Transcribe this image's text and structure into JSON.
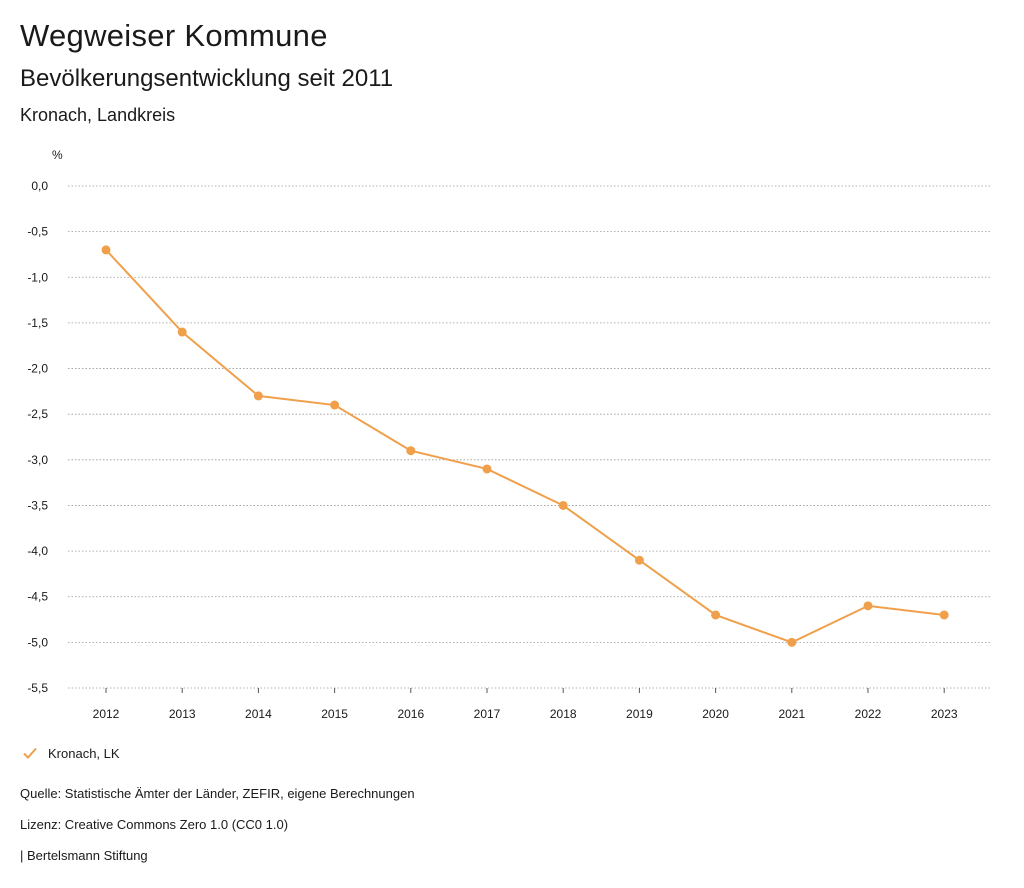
{
  "header": {
    "title": "Wegweiser Kommune",
    "subtitle": "Bevölkerungsentwicklung seit 2011",
    "region": "Kronach, Landkreis"
  },
  "chart_data": {
    "type": "line",
    "unit_label": "%",
    "x": [
      "2012",
      "2013",
      "2014",
      "2015",
      "2016",
      "2017",
      "2018",
      "2019",
      "2020",
      "2021",
      "2022",
      "2023"
    ],
    "series": [
      {
        "name": "Kronach, LK",
        "color": "#f0a04b",
        "values": [
          -0.7,
          -1.6,
          -2.3,
          -2.4,
          -2.9,
          -3.1,
          -3.5,
          -4.1,
          -4.7,
          -5.0,
          -4.6,
          -4.7
        ]
      }
    ],
    "y_ticks": [
      0.0,
      -0.5,
      -1.0,
      -1.5,
      -2.0,
      -2.5,
      -3.0,
      -3.5,
      -4.0,
      -4.5,
      -5.0,
      -5.5
    ],
    "y_tick_labels": [
      "0,0",
      "-0,5",
      "-1,0",
      "-1,5",
      "-2,0",
      "-2,5",
      "-3,0",
      "-3,5",
      "-4,0",
      "-4,5",
      "-5,0",
      "-5,5"
    ],
    "ylim": [
      -5.5,
      0.0
    ],
    "grid": true,
    "legend_position": "bottom-left"
  },
  "legend": {
    "label": "Kronach, LK"
  },
  "footer": {
    "source": "Quelle: Statistische Ämter der Länder, ZEFIR, eigene Berechnungen",
    "license": "Lizenz: Creative Commons Zero 1.0 (CC0 1.0)",
    "publisher": "| Bertelsmann Stiftung"
  },
  "colors": {
    "series": "#f0a04b",
    "grid": "#999999",
    "text": "#1a1a1a"
  }
}
